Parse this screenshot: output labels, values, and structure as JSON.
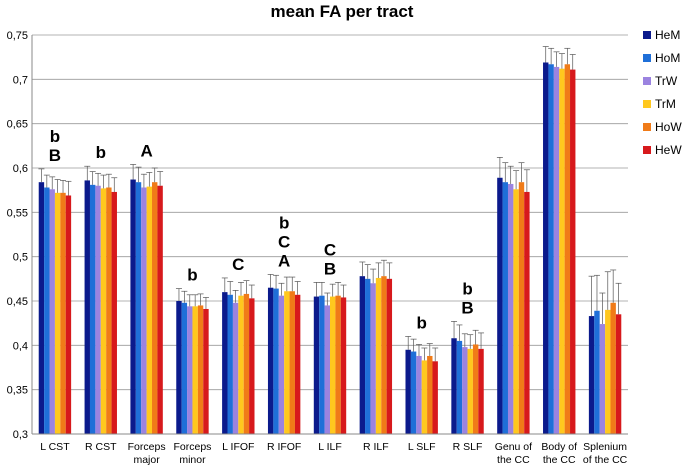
{
  "chart_data": {
    "type": "bar",
    "title": "mean FA per tract",
    "ylim": [
      0.3,
      0.75
    ],
    "y_ticks": [
      "0,3",
      "0,35",
      "0,4",
      "0,45",
      "0,5",
      "0,55",
      "0,6",
      "0,65",
      "0,7",
      "0,75"
    ],
    "y_tick_values": [
      0.3,
      0.35,
      0.4,
      0.45,
      0.5,
      0.55,
      0.6,
      0.65,
      0.7,
      0.75
    ],
    "categories": [
      [
        "L CST"
      ],
      [
        "R CST"
      ],
      [
        "Forceps",
        "major"
      ],
      [
        "Forceps",
        "minor"
      ],
      [
        "L IFOF"
      ],
      [
        "R IFOF"
      ],
      [
        "L ILF"
      ],
      [
        "R ILF"
      ],
      [
        "L SLF"
      ],
      [
        "R SLF"
      ],
      [
        "Genu of",
        "the CC"
      ],
      [
        "Body of",
        "the CC"
      ],
      [
        "Splenium",
        "of the CC"
      ]
    ],
    "legend_position": "right",
    "grid": true,
    "series": [
      {
        "name": "HeM",
        "color": "#0b1a8c",
        "values": [
          0.584,
          0.586,
          0.587,
          0.45,
          0.46,
          0.465,
          0.455,
          0.478,
          0.395,
          0.408,
          0.589,
          0.719,
          0.433
        ],
        "errors": [
          0.015,
          0.016,
          0.017,
          0.014,
          0.016,
          0.015,
          0.016,
          0.016,
          0.015,
          0.019,
          0.023,
          0.018,
          0.045
        ]
      },
      {
        "name": "HoM",
        "color": "#1f6fd8",
        "values": [
          0.578,
          0.581,
          0.584,
          0.448,
          0.457,
          0.464,
          0.456,
          0.475,
          0.393,
          0.405,
          0.584,
          0.717,
          0.439
        ],
        "errors": [
          0.014,
          0.015,
          0.017,
          0.013,
          0.015,
          0.015,
          0.015,
          0.016,
          0.014,
          0.018,
          0.022,
          0.018,
          0.04
        ]
      },
      {
        "name": "TrW",
        "color": "#9b83e0",
        "values": [
          0.576,
          0.58,
          0.578,
          0.444,
          0.448,
          0.456,
          0.445,
          0.47,
          0.388,
          0.398,
          0.582,
          0.714,
          0.424
        ],
        "errors": [
          0.014,
          0.014,
          0.015,
          0.013,
          0.014,
          0.014,
          0.014,
          0.016,
          0.013,
          0.015,
          0.02,
          0.017,
          0.035
        ]
      },
      {
        "name": "TrM",
        "color": "#ffc81e",
        "values": [
          0.572,
          0.577,
          0.579,
          0.444,
          0.456,
          0.461,
          0.455,
          0.476,
          0.383,
          0.396,
          0.576,
          0.712,
          0.44
        ],
        "errors": [
          0.015,
          0.015,
          0.016,
          0.013,
          0.015,
          0.016,
          0.014,
          0.017,
          0.014,
          0.016,
          0.021,
          0.017,
          0.043
        ]
      },
      {
        "name": "HoW",
        "color": "#f07b18",
        "values": [
          0.572,
          0.578,
          0.584,
          0.445,
          0.458,
          0.461,
          0.456,
          0.478,
          0.388,
          0.401,
          0.584,
          0.717,
          0.448
        ],
        "errors": [
          0.014,
          0.015,
          0.016,
          0.013,
          0.015,
          0.016,
          0.015,
          0.018,
          0.014,
          0.016,
          0.022,
          0.018,
          0.037
        ]
      },
      {
        "name": "HeW",
        "color": "#d7191c",
        "values": [
          0.569,
          0.573,
          0.58,
          0.441,
          0.453,
          0.457,
          0.454,
          0.475,
          0.382,
          0.396,
          0.573,
          0.711,
          0.435
        ],
        "errors": [
          0.016,
          0.016,
          0.016,
          0.013,
          0.015,
          0.015,
          0.014,
          0.018,
          0.015,
          0.018,
          0.025,
          0.017,
          0.035
        ]
      }
    ],
    "annotations": [
      {
        "category": 0,
        "lines": [
          "b",
          "B"
        ]
      },
      {
        "category": 1,
        "lines": [
          "b"
        ]
      },
      {
        "category": 2,
        "lines": [
          "A"
        ]
      },
      {
        "category": 3,
        "lines": [
          "b"
        ]
      },
      {
        "category": 4,
        "lines": [
          "C"
        ]
      },
      {
        "category": 5,
        "lines": [
          "b",
          "C",
          "A"
        ]
      },
      {
        "category": 6,
        "lines": [
          "C",
          "B"
        ]
      },
      {
        "category": 8,
        "lines": [
          "b"
        ]
      },
      {
        "category": 9,
        "lines": [
          "b",
          "B"
        ]
      }
    ]
  }
}
